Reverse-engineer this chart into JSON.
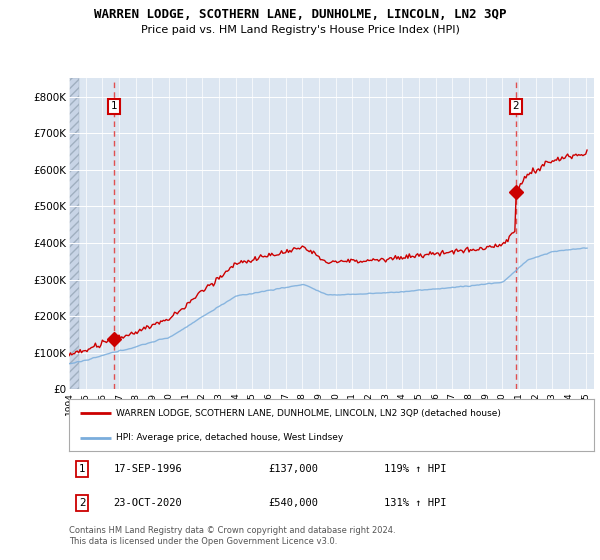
{
  "title": "WARREN LODGE, SCOTHERN LANE, DUNHOLME, LINCOLN, LN2 3QP",
  "subtitle": "Price paid vs. HM Land Registry's House Price Index (HPI)",
  "legend_line1": "WARREN LODGE, SCOTHERN LANE, DUNHOLME, LINCOLN, LN2 3QP (detached house)",
  "legend_line2": "HPI: Average price, detached house, West Lindsey",
  "annotation1_date": "17-SEP-1996",
  "annotation1_price": "£137,000",
  "annotation1_hpi": "119% ↑ HPI",
  "annotation2_date": "23-OCT-2020",
  "annotation2_price": "£540,000",
  "annotation2_hpi": "131% ↑ HPI",
  "footnote": "Contains HM Land Registry data © Crown copyright and database right 2024.\nThis data is licensed under the Open Government Licence v3.0.",
  "sale1_year": 1996.71,
  "sale1_price": 137000,
  "sale2_year": 2020.81,
  "sale2_price": 540000,
  "price_color": "#cc0000",
  "hpi_color": "#7aaddc",
  "dashed_line_color": "#e05050",
  "ylim_min": 0,
  "ylim_max": 850000,
  "xlim_min": 1994.0,
  "xlim_max": 2025.5,
  "background_color": "#dce6f1",
  "grid_color": "#ffffff"
}
